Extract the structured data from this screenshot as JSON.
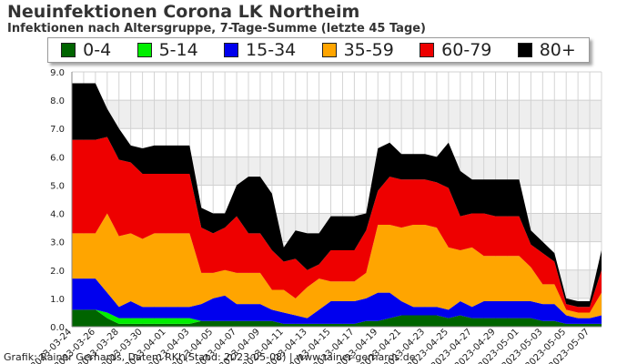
{
  "title": "Neuinfektionen Corona LK Northeim",
  "subtitle": "Infektionen nach Altersgruppe, 7-Tage-Summe (letzte 45 Tage)",
  "credits": "Grafik: Rainer Gerhards, Daten: RKI (Stand: 2023-05-08) | www.rainer-gerhards.de",
  "chart_data": {
    "type": "area",
    "stacked": true,
    "ylim": [
      0,
      9
    ],
    "yticks": [
      "0.0",
      "1.0",
      "2.0",
      "3.0",
      "4.0",
      "5.0",
      "6.0",
      "7.0",
      "8.0",
      "9.0"
    ],
    "grid": true,
    "legend_position": "top",
    "x": [
      "2023-03-24",
      "2023-03-25",
      "2023-03-26",
      "2023-03-27",
      "2023-03-28",
      "2023-03-29",
      "2023-03-30",
      "2023-03-31",
      "2023-04-01",
      "2023-04-02",
      "2023-04-03",
      "2023-04-04",
      "2023-04-05",
      "2023-04-06",
      "2023-04-07",
      "2023-04-08",
      "2023-04-09",
      "2023-04-10",
      "2023-04-11",
      "2023-04-12",
      "2023-04-13",
      "2023-04-14",
      "2023-04-15",
      "2023-04-16",
      "2023-04-17",
      "2023-04-18",
      "2023-04-19",
      "2023-04-20",
      "2023-04-21",
      "2023-04-22",
      "2023-04-23",
      "2023-04-24",
      "2023-04-25",
      "2023-04-26",
      "2023-04-27",
      "2023-04-28",
      "2023-04-29",
      "2023-04-30",
      "2023-05-01",
      "2023-05-02",
      "2023-05-03",
      "2023-05-04",
      "2023-05-05",
      "2023-05-06",
      "2023-05-07",
      "2023-05-08"
    ],
    "xtick_labels": [
      "2023-03-24",
      "2023-03-26",
      "2023-03-28",
      "2023-03-30",
      "2023-04-01",
      "2023-04-03",
      "2023-04-05",
      "2023-04-07",
      "2023-04-09",
      "2023-04-11",
      "2023-04-13",
      "2023-04-15",
      "2023-04-17",
      "2023-04-19",
      "2023-04-21",
      "2023-04-23",
      "2023-04-25",
      "2023-04-27",
      "2023-04-29",
      "2023-05-01",
      "2023-05-03",
      "2023-05-05",
      "2023-05-07"
    ],
    "series": [
      {
        "name": "0-4",
        "color": "#006400",
        "values": [
          0.6,
          0.6,
          0.6,
          0.3,
          0.1,
          0.1,
          0.1,
          0.1,
          0.1,
          0.1,
          0.1,
          0.2,
          0.2,
          0.2,
          0.2,
          0.2,
          0.2,
          0.2,
          0.1,
          0.1,
          0.1,
          0.1,
          0.1,
          0.1,
          0.1,
          0.2,
          0.2,
          0.3,
          0.4,
          0.4,
          0.4,
          0.4,
          0.3,
          0.4,
          0.3,
          0.3,
          0.3,
          0.3,
          0.3,
          0.3,
          0.2,
          0.2,
          0.1,
          0.1,
          0.1,
          0.1
        ]
      },
      {
        "name": "5-14",
        "color": "#00ee00",
        "values": [
          0,
          0,
          0,
          0.2,
          0.2,
          0.2,
          0.2,
          0.2,
          0.2,
          0.2,
          0.2,
          0,
          0,
          0,
          0,
          0,
          0,
          0,
          0,
          0,
          0,
          0,
          0,
          0,
          0,
          0,
          0,
          0,
          0,
          0,
          0,
          0,
          0,
          0,
          0,
          0,
          0,
          0,
          0,
          0,
          0,
          0,
          0,
          0,
          0,
          0
        ]
      },
      {
        "name": "15-34",
        "color": "#0000ee",
        "values": [
          1.1,
          1.1,
          1.1,
          0.7,
          0.4,
          0.6,
          0.4,
          0.4,
          0.4,
          0.4,
          0.4,
          0.6,
          0.8,
          0.9,
          0.6,
          0.6,
          0.6,
          0.4,
          0.4,
          0.3,
          0.2,
          0.5,
          0.8,
          0.8,
          0.8,
          0.8,
          1.0,
          0.9,
          0.5,
          0.3,
          0.3,
          0.3,
          0.3,
          0.5,
          0.4,
          0.6,
          0.6,
          0.6,
          0.6,
          0.6,
          0.6,
          0.6,
          0.3,
          0.2,
          0.2,
          0.3
        ]
      },
      {
        "name": "35-59",
        "color": "#ffa500",
        "values": [
          1.6,
          1.6,
          1.6,
          2.8,
          2.5,
          2.4,
          2.4,
          2.6,
          2.6,
          2.6,
          2.6,
          1.1,
          0.9,
          0.9,
          1.1,
          1.1,
          1.1,
          0.7,
          0.8,
          0.6,
          1.1,
          1.1,
          0.7,
          0.7,
          0.7,
          0.9,
          2.4,
          2.4,
          2.6,
          2.9,
          2.9,
          2.8,
          2.2,
          1.8,
          2.1,
          1.6,
          1.6,
          1.6,
          1.6,
          1.2,
          0.7,
          0.7,
          0.2,
          0.2,
          0.2,
          0.8
        ]
      },
      {
        "name": "60-79",
        "color": "#ee0000",
        "values": [
          3.3,
          3.3,
          3.3,
          2.7,
          2.7,
          2.5,
          2.3,
          2.1,
          2.1,
          2.1,
          2.1,
          1.6,
          1.4,
          1.5,
          2.0,
          1.4,
          1.4,
          1.4,
          1.0,
          1.4,
          0.6,
          0.5,
          1.1,
          1.1,
          1.1,
          1.5,
          1.2,
          1.7,
          1.7,
          1.6,
          1.6,
          1.6,
          2.1,
          1.2,
          1.2,
          1.5,
          1.4,
          1.4,
          1.4,
          0.8,
          1.1,
          0.8,
          0.2,
          0.2,
          0.2,
          0.8
        ]
      },
      {
        "name": "80+",
        "color": "#000000",
        "values": [
          2.0,
          2.0,
          2.0,
          1.0,
          1.1,
          0.6,
          0.9,
          1.0,
          1.0,
          1.0,
          1.0,
          0.7,
          0.7,
          0.5,
          1.1,
          2.0,
          2.0,
          2.0,
          0.5,
          1.0,
          1.3,
          1.1,
          1.2,
          1.2,
          1.2,
          0.6,
          1.5,
          1.2,
          0.9,
          0.9,
          0.9,
          0.9,
          1.6,
          1.6,
          1.2,
          1.2,
          1.3,
          1.3,
          1.3,
          0.5,
          0.4,
          0.3,
          0.2,
          0.2,
          0.2,
          0.7
        ]
      }
    ]
  }
}
